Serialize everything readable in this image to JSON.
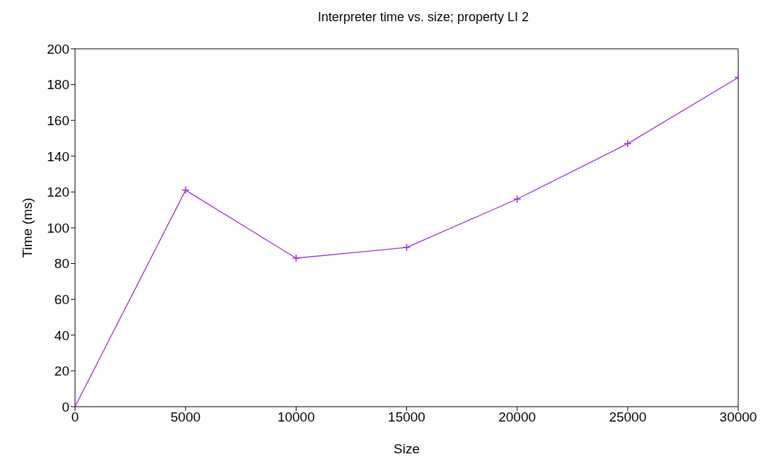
{
  "chart_data": {
    "type": "line",
    "title": "Interpreter time vs. size; property LI 2",
    "xlabel": "Size",
    "ylabel": "Time (ms)",
    "x": [
      0,
      5000,
      10000,
      15000,
      20000,
      25000,
      30000
    ],
    "series": [
      {
        "color": "#9b30d9",
        "values": [
          0,
          121,
          83,
          89,
          116,
          147,
          184
        ]
      }
    ],
    "xlim": [
      0,
      30000
    ],
    "xticks": [
      0,
      5000,
      10000,
      15000,
      20000,
      25000,
      30000
    ],
    "ylim": [
      0,
      200
    ],
    "yticks": [
      0,
      20,
      40,
      60,
      80,
      100,
      120,
      140,
      160,
      180,
      200
    ],
    "grid": false,
    "marker": "cross",
    "line_style": "solid"
  }
}
